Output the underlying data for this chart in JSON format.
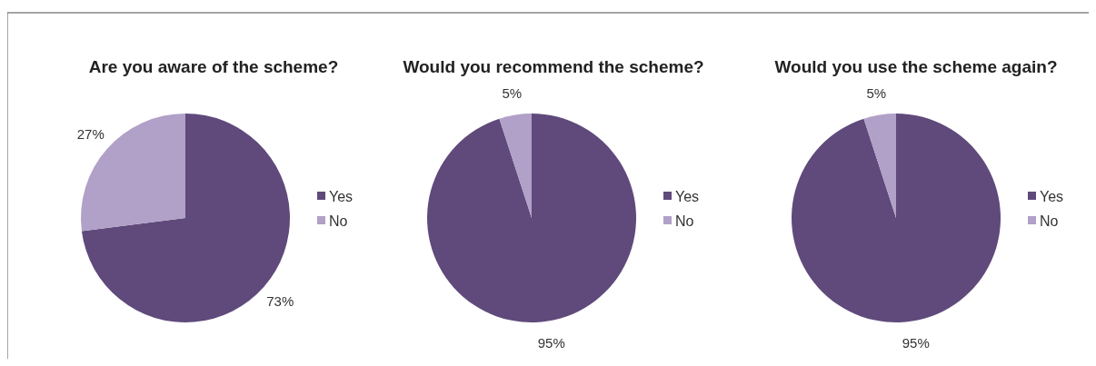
{
  "chart_data": [
    {
      "type": "pie",
      "title": "Are you aware of the scheme?",
      "categories": [
        "Yes",
        "No"
      ],
      "values": [
        73,
        27
      ],
      "value_labels": [
        "73%",
        "27%"
      ],
      "colors": [
        "#5f4a7b",
        "#b1a0c7"
      ],
      "legend": "right"
    },
    {
      "type": "pie",
      "title": "Would you recommend the scheme?",
      "categories": [
        "Yes",
        "No"
      ],
      "values": [
        95,
        5
      ],
      "value_labels": [
        "95%",
        "5%"
      ],
      "colors": [
        "#5f4a7b",
        "#b1a0c7"
      ],
      "legend": "right"
    },
    {
      "type": "pie",
      "title": "Would you use the scheme again?",
      "categories": [
        "Yes",
        "No"
      ],
      "values": [
        95,
        5
      ],
      "value_labels": [
        "95%",
        "5%"
      ],
      "colors": [
        "#5f4a7b",
        "#b1a0c7"
      ],
      "legend": "right"
    }
  ]
}
